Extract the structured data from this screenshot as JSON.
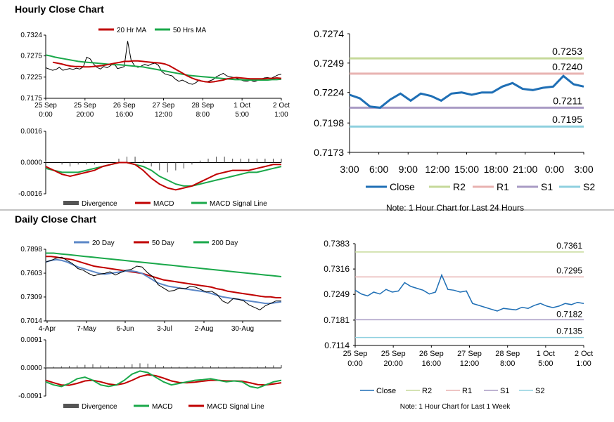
{
  "section_titles": {
    "hourly": "Hourly Close Chart",
    "daily": "Daily Close Chart"
  },
  "colors": {
    "red": "#c00000",
    "green": "#1aa84a",
    "blue": "#1f6fb5",
    "steel": "#5b87c7",
    "grey": "#555555",
    "r2": "#c6d99a",
    "r1": "#e8b2b0",
    "s1": "#a99bc4",
    "s2": "#8fd0df"
  },
  "chart_data": [
    {
      "id": "hourly_price",
      "type": "line",
      "legend": [
        "20 Hr MA",
        "50 Hrs MA"
      ],
      "x_ticks": [
        [
          "25 Sep",
          "0:00"
        ],
        [
          "25 Sep",
          "20:00"
        ],
        [
          "26 Sep",
          "16:00"
        ],
        [
          "27 Sep",
          "12:00"
        ],
        [
          "28 Sep",
          "8:00"
        ],
        [
          "1 Oct",
          "5:00"
        ],
        [
          "2 Oct",
          "1:00"
        ]
      ],
      "y_ticks": [
        "0.7324",
        "0.7275",
        "0.7225",
        "0.7175"
      ],
      "ylim": [
        0.7175,
        0.7324
      ],
      "close": [
        0.7247,
        0.7244,
        0.7241,
        0.7243,
        0.7248,
        0.7241,
        0.7243,
        0.7245,
        0.7243,
        0.7246,
        0.7244,
        0.7249,
        0.7272,
        0.7268,
        0.7256,
        0.7248,
        0.7244,
        0.725,
        0.7247,
        0.7252,
        0.7258,
        0.7245,
        0.7247,
        0.725,
        0.731,
        0.7265,
        0.7252,
        0.7248,
        0.7251,
        0.7255,
        0.7252,
        0.7256,
        0.7258,
        0.7253,
        0.7238,
        0.7232,
        0.723,
        0.7228,
        0.722,
        0.7215,
        0.7218,
        0.7214,
        0.721,
        0.7208,
        0.7212,
        0.7218,
        0.7215,
        0.7213,
        0.7216,
        0.7219,
        0.7226,
        0.723,
        0.7234,
        0.7228,
        0.7226,
        0.7224,
        0.7222,
        0.7219,
        0.7216,
        0.7215,
        0.7218,
        0.7214,
        0.7217,
        0.722,
        0.7223,
        0.7224,
        0.7222,
        0.7226,
        0.723,
        0.7232
      ],
      "ma20": [
        0.726,
        0.7258,
        0.7256,
        0.7253,
        0.7251,
        0.725,
        0.725,
        0.7249,
        0.7249,
        0.725,
        0.7251,
        0.7252,
        0.7254,
        0.7256,
        0.7258,
        0.726,
        0.7262,
        0.7262,
        0.7263,
        0.7263,
        0.7262,
        0.7261,
        0.726,
        0.7259,
        0.7258,
        0.7256,
        0.7252,
        0.7246,
        0.724,
        0.7234,
        0.7228,
        0.7223,
        0.7219,
        0.7216,
        0.7214,
        0.7213,
        0.7214,
        0.7216,
        0.7218,
        0.7221,
        0.7223,
        0.7224,
        0.7223,
        0.7222,
        0.7221,
        0.7221,
        0.7221,
        0.7221,
        0.7222,
        0.7222,
        0.7223,
        0.7222
      ],
      "ma50": [
        0.7277,
        0.7275,
        0.7272,
        0.727,
        0.7268,
        0.7266,
        0.7264,
        0.7262,
        0.7261,
        0.726,
        0.7259,
        0.7258,
        0.7257,
        0.7256,
        0.7255,
        0.7254,
        0.7254,
        0.7253,
        0.7252,
        0.7251,
        0.725,
        0.7249,
        0.7247,
        0.7245,
        0.7243,
        0.7241,
        0.7239,
        0.7237,
        0.7235,
        0.7233,
        0.7231,
        0.7229,
        0.7228,
        0.7227,
        0.7226,
        0.7225,
        0.7224,
        0.7223,
        0.7222,
        0.7221,
        0.722,
        0.7219,
        0.7219,
        0.7218,
        0.7218,
        0.7218,
        0.7218,
        0.7218,
        0.7218,
        0.7219,
        0.7219,
        0.722
      ]
    },
    {
      "id": "hourly_macd",
      "type": "line",
      "legend": [
        "Divergence",
        "MACD",
        "MACD Signal Line"
      ],
      "y_ticks": [
        "0.0016",
        "0.0000",
        "-0.0016"
      ],
      "ylim": [
        -0.0016,
        0.0016
      ],
      "macd": [
        -0.0002,
        -0.0004,
        -0.0006,
        -0.0007,
        -0.0006,
        -0.0005,
        -0.0004,
        -0.0002,
        -0.0001,
        0.0,
        0.0,
        -0.0001,
        -0.0004,
        -0.0008,
        -0.0011,
        -0.0013,
        -0.0014,
        -0.0013,
        -0.0012,
        -0.001,
        -0.0008,
        -0.0006,
        -0.0005,
        -0.0004,
        -0.0004,
        -0.0004,
        -0.0003,
        -0.0002,
        -0.0001,
        -0.0001
      ],
      "signal": [
        -0.0003,
        -0.0004,
        -0.0005,
        -0.0005,
        -0.0005,
        -0.0004,
        -0.0003,
        -0.0002,
        -0.0001,
        0.0,
        0.0,
        -0.0001,
        -0.0002,
        -0.0004,
        -0.0007,
        -0.0009,
        -0.0011,
        -0.0012,
        -0.0012,
        -0.0011,
        -0.001,
        -0.0009,
        -0.0008,
        -0.0007,
        -0.0006,
        -0.0005,
        -0.0005,
        -0.0004,
        -0.0003,
        -0.0002
      ],
      "divergence": [
        0.0001,
        0.0,
        -0.0001,
        -0.0002,
        -0.0001,
        -0.0001,
        -0.0001,
        0.0,
        0.0,
        0.0002,
        0.0003,
        0.0003,
        0.0001,
        -0.0002,
        -0.0004,
        -0.0005,
        -0.0004,
        -0.0003,
        -0.0001,
        0.0001,
        0.0002,
        0.0003,
        0.0003,
        0.0002,
        0.0002,
        0.0002,
        0.0002,
        0.0002,
        0.0002,
        0.0002
      ]
    },
    {
      "id": "hourly_levels",
      "type": "line",
      "x_ticks": [
        "3:00",
        "6:00",
        "9:00",
        "12:00",
        "15:00",
        "18:00",
        "21:00",
        "0:00",
        "3:00"
      ],
      "y_ticks": [
        "0.7274",
        "0.7249",
        "0.7224",
        "0.7198",
        "0.7173"
      ],
      "ylim": [
        0.7173,
        0.7274
      ],
      "close": [
        0.7222,
        0.7219,
        0.7212,
        0.7211,
        0.7218,
        0.7223,
        0.7217,
        0.7223,
        0.7221,
        0.7217,
        0.7223,
        0.7224,
        0.7222,
        0.7224,
        0.7224,
        0.7229,
        0.7232,
        0.7227,
        0.7226,
        0.7228,
        0.7229,
        0.7238,
        0.7231,
        0.7229
      ],
      "levels": [
        {
          "name": "R2",
          "value": 0.7253,
          "label": "0.7253"
        },
        {
          "name": "R1",
          "value": 0.724,
          "label": "0.7240"
        },
        {
          "name": "S1",
          "value": 0.7211,
          "label": "0.7211"
        },
        {
          "name": "S2",
          "value": 0.7195,
          "label": "0.7195"
        }
      ],
      "legend": [
        "Close",
        "R2",
        "R1",
        "S1",
        "S2"
      ],
      "note": "Note: 1 Hour Chart for Last 24 Hours"
    },
    {
      "id": "daily_price",
      "type": "line",
      "legend": [
        "20 Day",
        "50 Day",
        "200 Day"
      ],
      "x_ticks": [
        "4-Apr",
        "7-May",
        "6-Jun",
        "3-Jul",
        "2-Aug",
        "30-Aug"
      ],
      "y_ticks": [
        "0.7898",
        "0.7603",
        "0.7309",
        "0.7014"
      ],
      "ylim": [
        0.7014,
        0.7898
      ],
      "close": [
        0.774,
        0.776,
        0.779,
        0.78,
        0.776,
        0.772,
        0.766,
        0.764,
        0.76,
        0.757,
        0.759,
        0.76,
        0.762,
        0.758,
        0.761,
        0.764,
        0.765,
        0.769,
        0.768,
        0.761,
        0.756,
        0.746,
        0.742,
        0.738,
        0.739,
        0.742,
        0.741,
        0.744,
        0.743,
        0.74,
        0.737,
        0.738,
        0.734,
        0.726,
        0.723,
        0.729,
        0.728,
        0.726,
        0.721,
        0.718,
        0.715,
        0.72,
        0.723,
        0.726,
        0.726
      ],
      "ma20": [
        0.774,
        0.776,
        0.777,
        0.776,
        0.774,
        0.771,
        0.768,
        0.766,
        0.764,
        0.762,
        0.76,
        0.759,
        0.76,
        0.761,
        0.762,
        0.763,
        0.763,
        0.762,
        0.76,
        0.756,
        0.752,
        0.748,
        0.746,
        0.744,
        0.743,
        0.742,
        0.741,
        0.74,
        0.739,
        0.738,
        0.737,
        0.735,
        0.733,
        0.731,
        0.73,
        0.729,
        0.728,
        0.727,
        0.726,
        0.725,
        0.724,
        0.723,
        0.723,
        0.724,
        0.725
      ],
      "ma50": [
        0.781,
        0.781,
        0.78,
        0.779,
        0.778,
        0.777,
        0.775,
        0.773,
        0.771,
        0.769,
        0.768,
        0.767,
        0.766,
        0.765,
        0.764,
        0.763,
        0.762,
        0.761,
        0.76,
        0.758,
        0.756,
        0.754,
        0.752,
        0.751,
        0.75,
        0.749,
        0.748,
        0.747,
        0.746,
        0.745,
        0.744,
        0.743,
        0.741,
        0.74,
        0.738,
        0.737,
        0.736,
        0.735,
        0.734,
        0.733,
        0.732,
        0.731,
        0.731,
        0.73,
        0.73
      ],
      "ma200": [
        0.785,
        0.785,
        0.784,
        0.783,
        0.782,
        0.781,
        0.78,
        0.779,
        0.778,
        0.777,
        0.776,
        0.775,
        0.774,
        0.773,
        0.772,
        0.771,
        0.77,
        0.769,
        0.768,
        0.767,
        0.766,
        0.765,
        0.764,
        0.763,
        0.762,
        0.761,
        0.76,
        0.759,
        0.758,
        0.757,
        0.756
      ]
    },
    {
      "id": "daily_macd",
      "type": "line",
      "legend": [
        "Divergence",
        "MACD",
        "MACD Signal Line"
      ],
      "y_ticks": [
        "0.0091",
        "0.0000",
        "-0.0091"
      ],
      "ylim": [
        -0.0091,
        0.0091
      ],
      "macd": [
        -0.0045,
        -0.0055,
        -0.006,
        -0.005,
        -0.0035,
        -0.003,
        -0.004,
        -0.0055,
        -0.006,
        -0.0055,
        -0.004,
        -0.002,
        -0.001,
        -0.0015,
        -0.003,
        -0.0045,
        -0.0055,
        -0.005,
        -0.0045,
        -0.004,
        -0.0038,
        -0.0035,
        -0.004,
        -0.0045,
        -0.0042,
        -0.0045,
        -0.006,
        -0.0065,
        -0.0055,
        -0.0045,
        -0.004
      ],
      "signal": [
        -0.004,
        -0.0048,
        -0.0055,
        -0.0056,
        -0.005,
        -0.0042,
        -0.004,
        -0.0045,
        -0.0052,
        -0.0055,
        -0.005,
        -0.004,
        -0.0028,
        -0.0022,
        -0.0025,
        -0.0033,
        -0.0042,
        -0.0047,
        -0.0048,
        -0.0046,
        -0.0043,
        -0.004,
        -0.004,
        -0.0042,
        -0.0042,
        -0.0043,
        -0.0048,
        -0.0054,
        -0.0055,
        -0.0052,
        -0.0048
      ],
      "divergence": [
        0.0004,
        0.0004,
        0.0005,
        0.0006,
        0.0008,
        0.001,
        0.0012,
        0.0008,
        0.0005,
        0.0003,
        0.0008,
        0.0012,
        0.0015,
        0.0014,
        0.001,
        0.0006,
        0.0004,
        0.0004,
        0.0004,
        0.0005,
        0.0006,
        0.0006,
        0.0004,
        0.0004,
        0.0004,
        0.0003,
        0.0003,
        0.0004,
        0.0006,
        0.0008,
        0.0009
      ]
    },
    {
      "id": "weekly_levels",
      "type": "line",
      "x_ticks": [
        [
          "25 Sep",
          "0:00"
        ],
        [
          "25 Sep",
          "20:00"
        ],
        [
          "26 Sep",
          "16:00"
        ],
        [
          "27 Sep",
          "12:00"
        ],
        [
          "28 Sep",
          "8:00"
        ],
        [
          "1 Oct",
          "5:00"
        ],
        [
          "2 Oct",
          "1:00"
        ]
      ],
      "y_ticks": [
        "0.7383",
        "0.7316",
        "0.7249",
        "0.7181",
        "0.7114"
      ],
      "ylim": [
        0.7114,
        0.7383
      ],
      "close": [
        0.726,
        0.725,
        0.7245,
        0.7255,
        0.725,
        0.7262,
        0.7255,
        0.7258,
        0.728,
        0.727,
        0.7265,
        0.726,
        0.725,
        0.7255,
        0.73,
        0.7262,
        0.726,
        0.7255,
        0.7258,
        0.7225,
        0.722,
        0.7215,
        0.721,
        0.7205,
        0.7212,
        0.721,
        0.7208,
        0.7215,
        0.7212,
        0.722,
        0.7225,
        0.7218,
        0.7214,
        0.7218,
        0.7225,
        0.7222,
        0.7228,
        0.7225
      ],
      "levels": [
        {
          "name": "R2",
          "value": 0.7361,
          "label": "0.7361"
        },
        {
          "name": "R1",
          "value": 0.7295,
          "label": "0.7295"
        },
        {
          "name": "S1",
          "value": 0.7182,
          "label": "0.7182"
        },
        {
          "name": "S2",
          "value": 0.7135,
          "label": "0.7135"
        }
      ],
      "legend": [
        "Close",
        "R2",
        "R1",
        "S1",
        "S2"
      ],
      "note": "Note: 1 Hour Chart for Last 1 Week"
    }
  ]
}
